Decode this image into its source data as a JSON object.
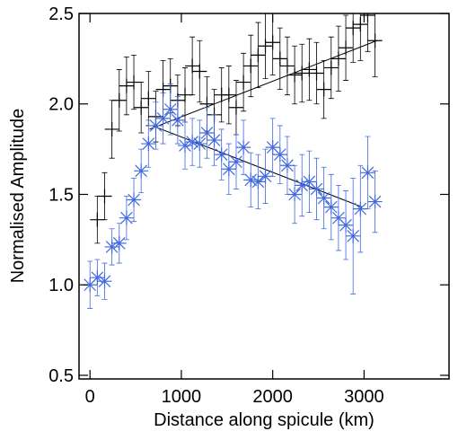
{
  "chart_data": {
    "type": "scatter",
    "xlabel": "Distance along spicule (km)",
    "ylabel": "Normalised Amplitude",
    "xlim": [
      -120,
      3930
    ],
    "ylim": [
      0.48,
      2.5
    ],
    "xticks": [
      0,
      1000,
      2000,
      3000
    ],
    "yticks": [
      {
        "value": 0.5,
        "label": "0.5"
      },
      {
        "value": 1.0,
        "label": "1.0"
      },
      {
        "value": 1.5,
        "label": "1.5"
      },
      {
        "value": 2.0,
        "label": "2.0"
      },
      {
        "value": 2.5,
        "label": "2.5"
      }
    ],
    "series": [
      {
        "color": "#000000",
        "marker": "plus",
        "x": [
          80,
          160,
          240,
          320,
          400,
          480,
          560,
          640,
          720,
          800,
          880,
          960,
          1040,
          1120,
          1200,
          1280,
          1360,
          1440,
          1520,
          1600,
          1680,
          1760,
          1840,
          1920,
          2000,
          2080,
          2160,
          2240,
          2320,
          2400,
          2480,
          2560,
          2640,
          2720,
          2800,
          2880,
          2960,
          3040,
          3120
        ],
        "values": [
          1.36,
          1.49,
          1.86,
          2.02,
          2.1,
          2.12,
          1.98,
          2.03,
          1.93,
          2.08,
          2.1,
          2.02,
          2.05,
          2.21,
          2.18,
          2.0,
          1.94,
          2.05,
          2.05,
          1.98,
          2.12,
          2.21,
          2.27,
          2.32,
          2.34,
          2.25,
          2.21,
          2.16,
          2.17,
          2.19,
          2.17,
          2.08,
          2.2,
          2.25,
          2.31,
          2.42,
          2.44,
          2.49,
          2.35
        ],
        "errors": [
          0.13,
          0.13,
          0.16,
          0.17,
          0.16,
          0.15,
          0.14,
          0.15,
          0.14,
          0.16,
          0.15,
          0.14,
          0.15,
          0.16,
          0.17,
          0.15,
          0.14,
          0.15,
          0.16,
          0.15,
          0.16,
          0.17,
          0.18,
          0.18,
          0.18,
          0.17,
          0.16,
          0.16,
          0.16,
          0.17,
          0.17,
          0.16,
          0.17,
          0.18,
          0.18,
          0.19,
          0.2,
          0.2,
          0.2
        ]
      },
      {
        "color": "#4169e1",
        "marker": "asterisk",
        "x": [
          0,
          80,
          160,
          240,
          320,
          400,
          480,
          560,
          640,
          720,
          800,
          880,
          960,
          1040,
          1120,
          1200,
          1280,
          1360,
          1440,
          1520,
          1600,
          1680,
          1760,
          1840,
          1920,
          2000,
          2080,
          2160,
          2240,
          2320,
          2400,
          2480,
          2560,
          2640,
          2720,
          2800,
          2880,
          2960,
          3040,
          3120
        ],
        "values": [
          1.0,
          1.04,
          1.02,
          1.21,
          1.23,
          1.37,
          1.47,
          1.63,
          1.78,
          1.88,
          1.92,
          1.97,
          1.91,
          1.77,
          1.79,
          1.78,
          1.84,
          1.8,
          1.72,
          1.64,
          1.68,
          1.76,
          1.58,
          1.57,
          1.6,
          1.76,
          1.72,
          1.66,
          1.5,
          1.55,
          1.57,
          1.53,
          1.48,
          1.43,
          1.37,
          1.33,
          1.27,
          1.42,
          1.62,
          1.46
        ],
        "errors": [
          0.13,
          0.1,
          0.1,
          0.1,
          0.11,
          0.12,
          0.12,
          0.12,
          0.13,
          0.13,
          0.14,
          0.14,
          0.13,
          0.13,
          0.13,
          0.13,
          0.14,
          0.14,
          0.14,
          0.14,
          0.15,
          0.15,
          0.15,
          0.15,
          0.15,
          0.16,
          0.16,
          0.16,
          0.16,
          0.17,
          0.17,
          0.17,
          0.17,
          0.18,
          0.18,
          0.19,
          0.32,
          0.24,
          0.2,
          0.17
        ]
      }
    ],
    "fits": [
      {
        "color": "#000000",
        "x": [
          650,
          3140
        ],
        "values": [
          1.86,
          2.35
        ]
      },
      {
        "color": "#000000",
        "x": [
          680,
          2980
        ],
        "values": [
          1.88,
          1.43
        ]
      }
    ]
  }
}
